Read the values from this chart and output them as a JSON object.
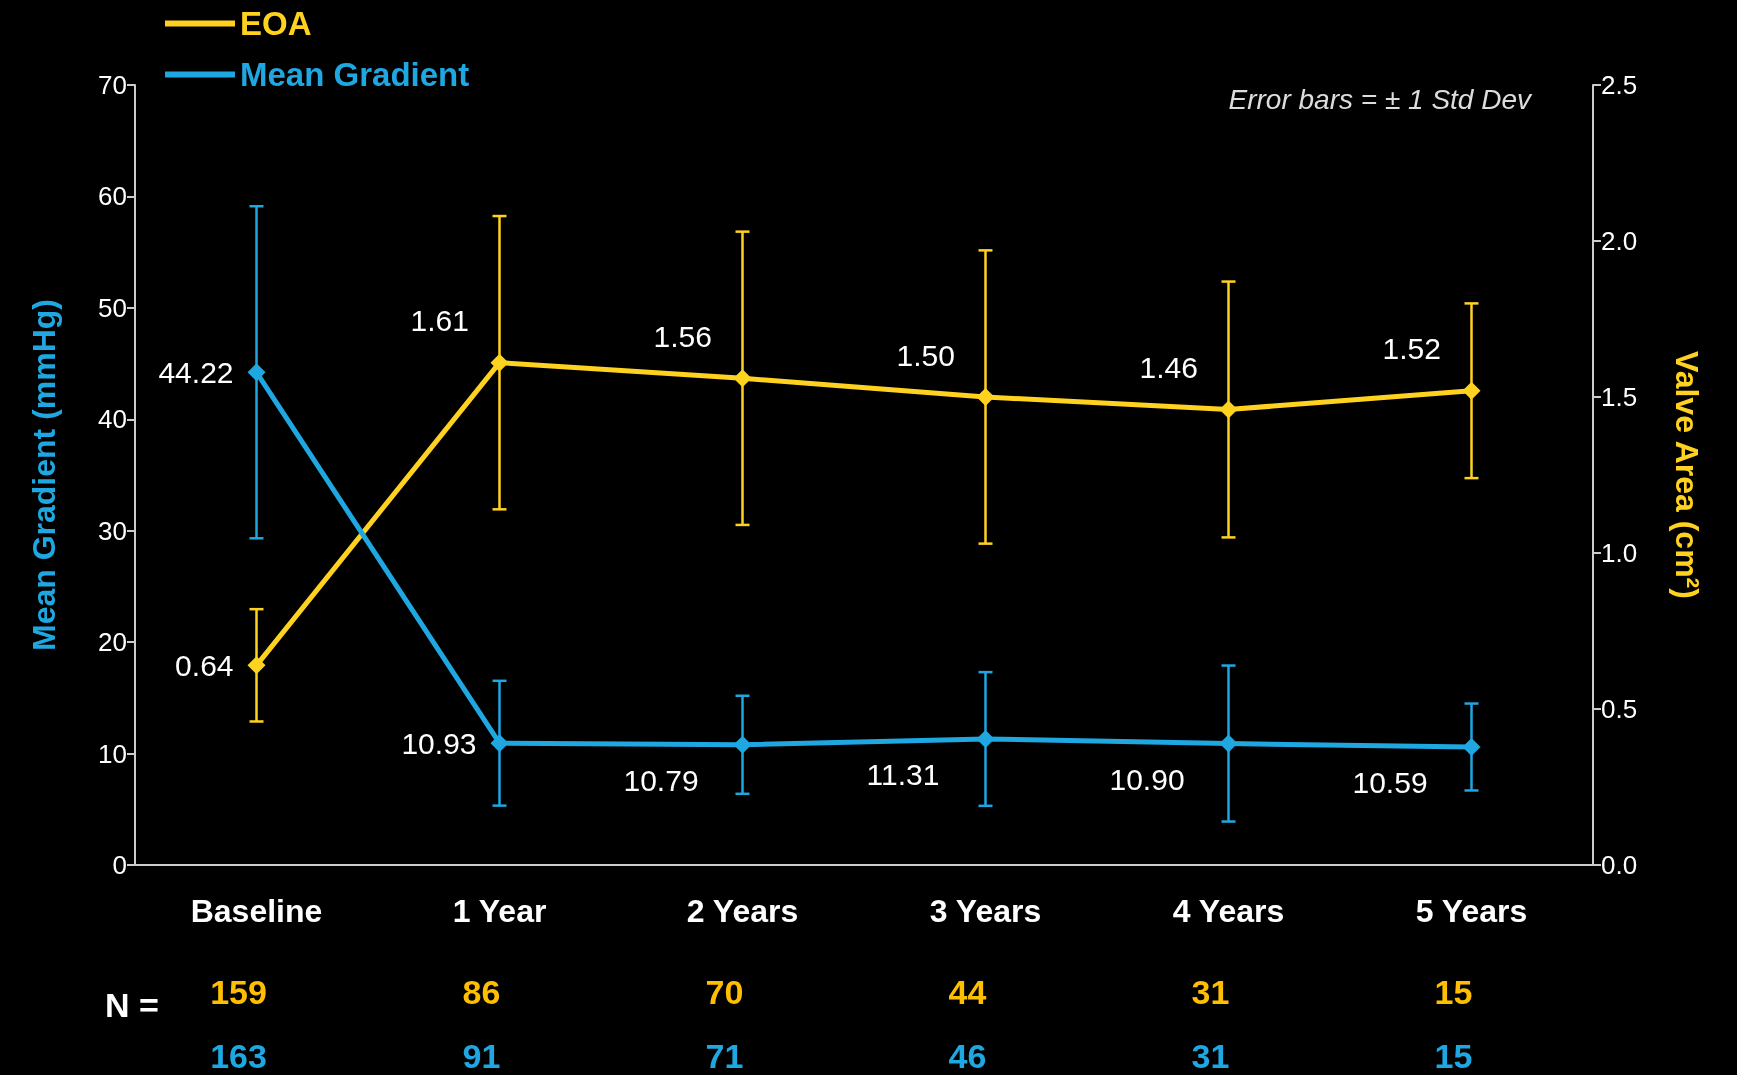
{
  "chart_data": {
    "type": "line",
    "ylabel": "Mean Gradient (mmHg)",
    "y2label": "Valve Area (cm²)",
    "categories": [
      "Baseline",
      "1 Year",
      "2 Years",
      "3 Years",
      "4 Years",
      "5 Years"
    ],
    "series": [
      {
        "name": "EOA",
        "color": "#ffd21f",
        "axis": "y2",
        "values": [
          0.64,
          1.61,
          1.56,
          1.5,
          1.46,
          1.52
        ],
        "value_labels": [
          "0.64",
          "1.61",
          "1.56",
          "1.50",
          "1.46",
          "1.52"
        ],
        "errors": [
          0.18,
          0.47,
          0.47,
          0.47,
          0.41,
          0.28
        ]
      },
      {
        "name": "Mean Gradient",
        "color": "#1ea7e1",
        "values": [
          44.22,
          10.93,
          10.79,
          11.31,
          10.9,
          10.59
        ],
        "value_labels": [
          "44.22",
          "10.93",
          "10.79",
          "11.31",
          "10.90",
          "10.59"
        ],
        "errors": [
          14.9,
          5.6,
          4.4,
          6.0,
          7.0,
          3.9
        ]
      }
    ],
    "ylim": [
      0,
      70
    ],
    "yticks": [
      0,
      10,
      20,
      30,
      40,
      50,
      60,
      70
    ],
    "y2lim": [
      0,
      2.5
    ],
    "y2ticks": [
      {
        "value": 0,
        "label": "0.0"
      },
      {
        "value": 0.5,
        "label": "0.5"
      },
      {
        "value": 1,
        "label": "1.0"
      },
      {
        "value": 1.5,
        "label": "1.5"
      },
      {
        "value": 2,
        "label": "2.0"
      },
      {
        "value": 2.5,
        "label": "2.5"
      }
    ],
    "marker": "diamond",
    "line_style": "solid",
    "grid": false,
    "legend": "top left",
    "annotations": [
      "Error bars = ± 1 Std Dev",
      "N =",
      "159",
      "86",
      "70",
      "44",
      "31",
      "15",
      "163",
      "91",
      "71",
      "46",
      "31",
      "15"
    ]
  }
}
